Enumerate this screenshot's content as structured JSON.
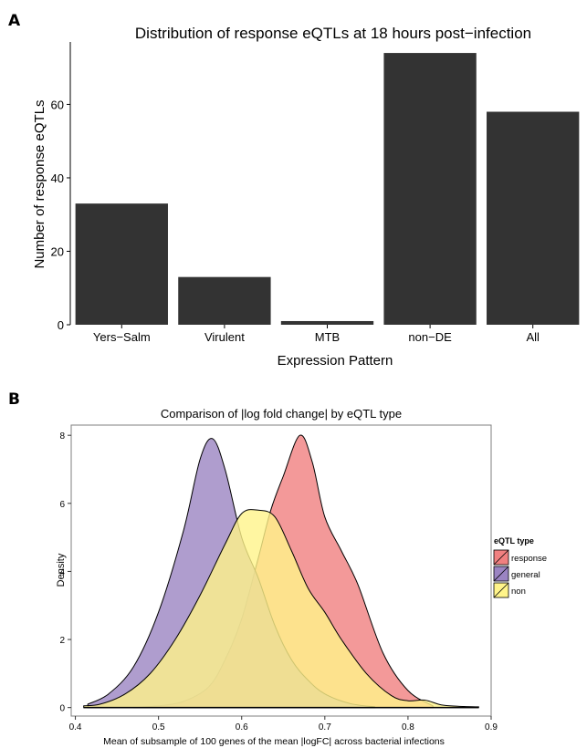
{
  "panels": {
    "a_letter": "A",
    "b_letter": "B"
  },
  "chart_data": [
    {
      "type": "bar",
      "title": "Distribution of response eQTLs at 18 hours post−infection",
      "xlabel": "Expression Pattern",
      "ylabel": "Number of response eQTLs",
      "categories": [
        "Yers−Salm",
        "Virulent",
        "MTB",
        "non−DE",
        "All"
      ],
      "values": [
        33,
        13,
        1,
        74,
        58
      ],
      "ylim": [
        0,
        77
      ],
      "yticks": [
        0,
        20,
        40,
        60
      ],
      "grid": false,
      "bar_color": "#333333"
    },
    {
      "type": "area",
      "title": "Comparison of |log fold change| by eQTL type",
      "xlabel": "Mean of subsample of 100 genes of the mean |logFC| across bacterial infections",
      "ylabel": "Density",
      "xlim": [
        0.395,
        0.9
      ],
      "ylim": [
        -0.25,
        8.3
      ],
      "xticks": [
        0.4,
        0.5,
        0.6,
        0.7,
        0.8,
        0.9
      ],
      "yticks": [
        0,
        2,
        4,
        6,
        8
      ],
      "grid": false,
      "legend": {
        "title": "eQTL type",
        "position": "right"
      },
      "series": [
        {
          "name": "response",
          "color": "#f08080",
          "x": [
            0.47,
            0.5,
            0.53,
            0.56,
            0.58,
            0.6,
            0.62,
            0.635,
            0.65,
            0.67,
            0.685,
            0.7,
            0.72,
            0.74,
            0.77,
            0.8,
            0.83
          ],
          "y": [
            0.0,
            0.05,
            0.18,
            0.6,
            1.4,
            2.6,
            4.4,
            5.8,
            6.8,
            8.0,
            7.2,
            5.6,
            4.6,
            3.6,
            1.6,
            0.5,
            0.05
          ]
        },
        {
          "name": "general",
          "color": "#9b84c2",
          "x": [
            0.415,
            0.44,
            0.47,
            0.5,
            0.53,
            0.55,
            0.565,
            0.58,
            0.6,
            0.62,
            0.64,
            0.66,
            0.68,
            0.7,
            0.73,
            0.76
          ],
          "y": [
            0.1,
            0.4,
            1.2,
            2.8,
            5.2,
            7.3,
            7.9,
            7.0,
            5.0,
            3.8,
            2.4,
            1.4,
            0.8,
            0.4,
            0.12,
            0.02
          ]
        },
        {
          "name": "non",
          "color": "#fff48a",
          "x": [
            0.41,
            0.43,
            0.46,
            0.49,
            0.52,
            0.55,
            0.58,
            0.6,
            0.62,
            0.64,
            0.66,
            0.68,
            0.7,
            0.72,
            0.75,
            0.78,
            0.8,
            0.82,
            0.84,
            0.86,
            0.885
          ],
          "y": [
            0.05,
            0.1,
            0.4,
            1.0,
            2.0,
            3.3,
            4.8,
            5.7,
            5.8,
            5.6,
            4.6,
            3.5,
            2.8,
            2.0,
            1.0,
            0.35,
            0.2,
            0.22,
            0.08,
            0.04,
            0.02
          ]
        }
      ]
    }
  ]
}
